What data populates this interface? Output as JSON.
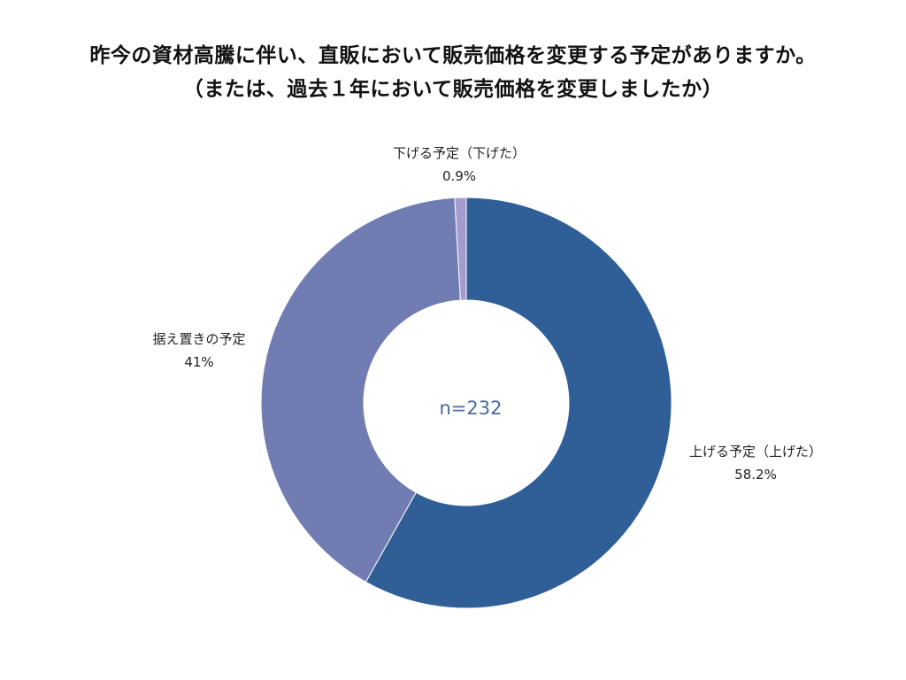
{
  "title": {
    "line1": "昨今の資材高騰に伴い、直販において販売価格を変更する予定がありますか。",
    "line2": "（または、過去１年において販売価格を変更しましたか）"
  },
  "chart_data": {
    "type": "pie",
    "donut": true,
    "center_text": "n=232",
    "slices": [
      {
        "label": "上げる予定（上げた）",
        "value": 58.2,
        "value_label": "58.2%",
        "color": "#305f98"
      },
      {
        "label": "据え置きの予定",
        "value": 41,
        "value_label": "41%",
        "color": "#717cb3"
      },
      {
        "label": "下げる予定（下げた）",
        "value": 0.9,
        "value_label": "0.9%",
        "color": "#a59bcf"
      }
    ],
    "start": "top",
    "direction": "clockwise"
  }
}
